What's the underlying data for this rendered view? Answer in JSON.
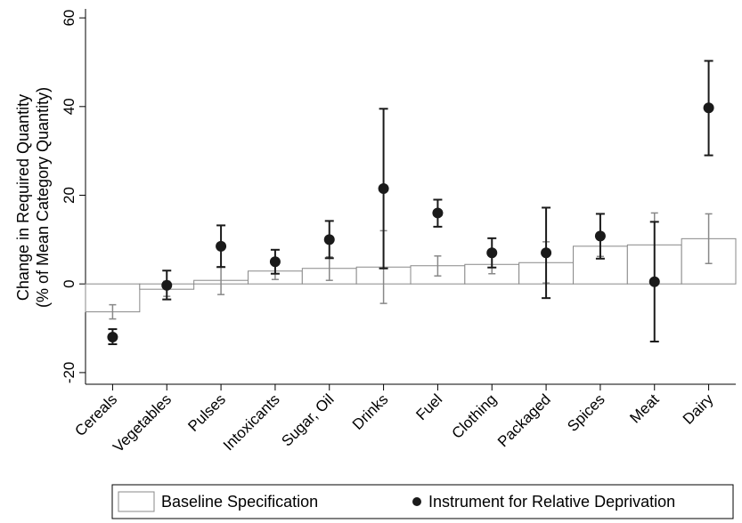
{
  "chart_data": {
    "type": "bar",
    "title": "",
    "xlabel": "",
    "ylabel": [
      "Change in Required Quantity",
      "(% of Mean Category Quantity)"
    ],
    "ylim": [
      -25,
      65
    ],
    "yticks": [
      -20,
      0,
      20,
      40,
      60
    ],
    "grid": false,
    "legend_position": "bottom",
    "categories": [
      "Cereals",
      "Vegetables",
      "Pulses",
      "Intoxicants",
      "Sugar, Oil",
      "Drinks",
      "Fuel",
      "Clothing",
      "Packaged",
      "Spices",
      "Meat",
      "Dairy"
    ],
    "series": [
      {
        "name": "Baseline Specification",
        "mark": "bar",
        "values": [
          -6.3,
          -1.2,
          0.8,
          2.9,
          3.5,
          3.8,
          4.1,
          4.4,
          4.8,
          8.5,
          8.8,
          10.2
        ],
        "ci_low": [
          -7.9,
          -2.8,
          -2.4,
          1.0,
          0.8,
          -4.4,
          1.8,
          2.3,
          0.2,
          6.2,
          1.0,
          4.6
        ],
        "ci_high": [
          -4.7,
          0.6,
          3.9,
          4.9,
          6.1,
          12.0,
          6.3,
          6.5,
          9.5,
          11.0,
          16.0,
          15.8
        ]
      },
      {
        "name": "Instrument for Relative Deprivation",
        "mark": "point",
        "values": [
          -12.0,
          -0.3,
          8.5,
          5.0,
          10.0,
          21.5,
          16.0,
          7.0,
          7.0,
          10.8,
          0.5,
          39.7
        ],
        "ci_low": [
          -13.6,
          -3.5,
          3.8,
          2.3,
          5.8,
          3.5,
          12.9,
          3.7,
          -3.2,
          5.7,
          -13.0,
          29.0
        ],
        "ci_high": [
          -10.2,
          3.0,
          13.2,
          7.7,
          14.2,
          39.5,
          19.0,
          10.3,
          17.2,
          15.8,
          14.0,
          50.3
        ]
      }
    ]
  },
  "colors": {
    "bar_fill": "#ffffff",
    "bar_stroke": "#888888",
    "baseline_ci": "#888888",
    "point": "#1a1a1a",
    "point_ci": "#1a1a1a",
    "axis": "#000000"
  }
}
